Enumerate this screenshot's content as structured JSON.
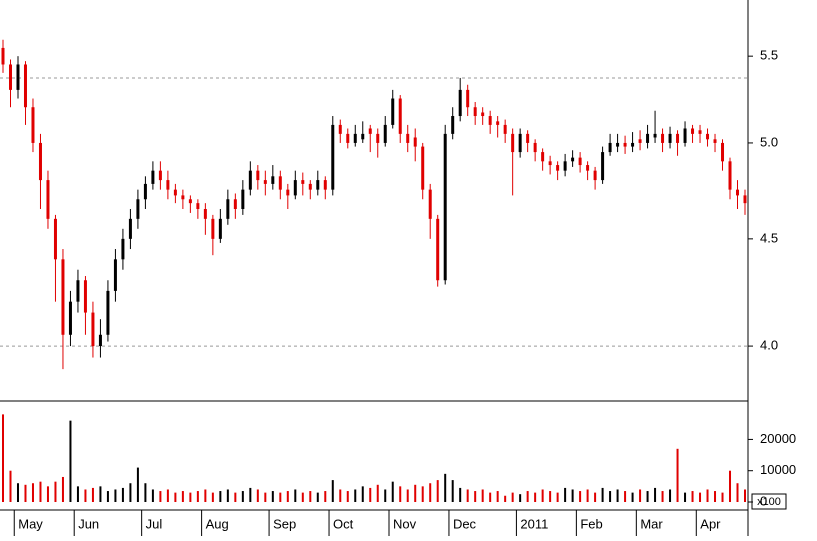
{
  "chart_data": [
    {
      "type": "candlestick",
      "categories": [
        null,
        null,
        "May",
        null,
        null,
        null,
        null,
        null,
        null,
        null,
        "Jun",
        null,
        null,
        null,
        null,
        null,
        null,
        null,
        null,
        "Jul",
        null,
        null,
        null,
        null,
        null,
        null,
        null,
        "Aug",
        null,
        null,
        null,
        null,
        null,
        null,
        null,
        null,
        "Sep",
        null,
        null,
        null,
        null,
        null,
        null,
        null,
        "Oct",
        null,
        null,
        null,
        null,
        null,
        null,
        null,
        "Nov",
        null,
        null,
        null,
        null,
        null,
        null,
        null,
        "Dec",
        null,
        null,
        null,
        null,
        null,
        null,
        null,
        null,
        "2011",
        null,
        null,
        null,
        null,
        null,
        null,
        null,
        "Feb",
        null,
        null,
        null,
        null,
        null,
        null,
        null,
        "Mar",
        null,
        null,
        null,
        null,
        null,
        null,
        null,
        "Apr",
        null,
        null,
        null,
        null,
        null,
        null
      ],
      "open": [
        5.55,
        5.45,
        5.3,
        5.45,
        5.2,
        5.0,
        4.8,
        4.6,
        4.4,
        4.05,
        4.2,
        4.3,
        4.15,
        4.0,
        4.05,
        4.25,
        4.4,
        4.5,
        4.6,
        4.7,
        4.78,
        4.85,
        4.8,
        4.75,
        4.72,
        4.7,
        4.68,
        4.65,
        4.6,
        4.5,
        4.6,
        4.7,
        4.65,
        4.75,
        4.85,
        4.8,
        4.78,
        4.82,
        4.75,
        4.72,
        4.8,
        4.78,
        4.75,
        4.8,
        4.75,
        5.1,
        5.05,
        5.0,
        5.02,
        5.08,
        5.05,
        5.0,
        5.1,
        5.25,
        5.05,
        5.03,
        4.98,
        4.75,
        4.6,
        4.3,
        5.05,
        5.15,
        5.3,
        5.2,
        5.17,
        5.15,
        5.12,
        5.1,
        5.05,
        4.95,
        5.05,
        5.0,
        4.95,
        4.9,
        4.88,
        4.85,
        4.9,
        4.92,
        4.88,
        4.85,
        4.8,
        4.95,
        4.98,
        5.0,
        4.98,
        5.02,
        5.0,
        5.03,
        5.05,
        5.0,
        5.05,
        5.0,
        5.08,
        5.07,
        5.05,
        5.02,
        5.0,
        4.9,
        4.75,
        4.72
      ],
      "high": [
        5.6,
        5.48,
        5.5,
        5.47,
        5.25,
        5.05,
        4.85,
        4.62,
        4.45,
        4.25,
        4.35,
        4.32,
        4.2,
        4.12,
        4.3,
        4.45,
        4.55,
        4.65,
        4.75,
        4.82,
        4.9,
        4.9,
        4.85,
        4.78,
        4.75,
        4.72,
        4.7,
        4.68,
        4.62,
        4.65,
        4.75,
        4.73,
        4.8,
        4.9,
        4.88,
        4.85,
        4.88,
        4.85,
        4.78,
        4.85,
        4.84,
        4.8,
        4.85,
        4.82,
        5.15,
        5.13,
        5.08,
        5.1,
        5.12,
        5.1,
        5.08,
        5.15,
        5.3,
        5.27,
        5.1,
        5.08,
        5.0,
        4.78,
        4.62,
        5.1,
        5.2,
        5.37,
        5.33,
        5.23,
        5.2,
        5.18,
        5.15,
        5.13,
        5.08,
        5.08,
        5.07,
        5.02,
        4.97,
        4.93,
        4.9,
        4.94,
        4.96,
        4.95,
        4.9,
        4.87,
        4.98,
        5.05,
        5.05,
        5.04,
        5.06,
        5.07,
        5.1,
        5.18,
        5.08,
        5.09,
        5.07,
        5.12,
        5.1,
        5.1,
        5.08,
        5.05,
        5.02,
        4.92,
        4.8,
        4.75
      ],
      "low": [
        5.4,
        5.2,
        5.25,
        5.1,
        4.95,
        4.65,
        4.55,
        4.2,
        3.9,
        4.0,
        4.15,
        4.05,
        3.95,
        3.95,
        4.02,
        4.2,
        4.35,
        4.45,
        4.55,
        4.65,
        4.75,
        4.75,
        4.7,
        4.68,
        4.65,
        4.63,
        4.6,
        4.52,
        4.42,
        4.48,
        4.57,
        4.6,
        4.62,
        4.72,
        4.75,
        4.72,
        4.75,
        4.7,
        4.65,
        4.7,
        4.72,
        4.7,
        4.72,
        4.7,
        4.72,
        5.0,
        4.97,
        4.98,
        5.0,
        4.95,
        4.92,
        4.98,
        5.08,
        5.0,
        4.95,
        4.9,
        4.7,
        4.5,
        4.27,
        4.28,
        5.02,
        5.12,
        5.15,
        5.1,
        5.1,
        5.05,
        5.03,
        5.0,
        4.72,
        4.92,
        4.95,
        4.9,
        4.85,
        4.83,
        4.8,
        4.82,
        4.87,
        4.84,
        4.8,
        4.75,
        4.78,
        4.93,
        4.95,
        4.94,
        4.95,
        4.96,
        4.97,
        5.0,
        4.95,
        4.97,
        4.93,
        4.98,
        5.0,
        5.0,
        4.98,
        4.95,
        4.85,
        4.7,
        4.65,
        4.62
      ],
      "close": [
        5.45,
        5.3,
        5.45,
        5.2,
        5.0,
        4.8,
        4.6,
        4.4,
        4.05,
        4.2,
        4.3,
        4.15,
        4.0,
        4.05,
        4.25,
        4.4,
        4.5,
        4.6,
        4.7,
        4.78,
        4.85,
        4.8,
        4.75,
        4.72,
        4.7,
        4.68,
        4.65,
        4.6,
        4.5,
        4.6,
        4.7,
        4.65,
        4.75,
        4.85,
        4.8,
        4.78,
        4.82,
        4.75,
        4.72,
        4.8,
        4.78,
        4.75,
        4.8,
        4.75,
        5.1,
        5.05,
        5.0,
        5.05,
        5.05,
        5.05,
        5.0,
        5.1,
        5.25,
        5.05,
        5.0,
        4.98,
        4.75,
        4.6,
        4.3,
        5.05,
        5.15,
        5.3,
        5.2,
        5.15,
        5.15,
        5.1,
        5.1,
        5.05,
        4.95,
        5.05,
        5.0,
        4.95,
        4.9,
        4.88,
        4.85,
        4.9,
        4.92,
        4.88,
        4.85,
        4.8,
        4.95,
        5.0,
        5.0,
        4.98,
        5.0,
        5.0,
        5.05,
        5.05,
        5.0,
        5.05,
        5.0,
        5.08,
        5.05,
        5.05,
        5.02,
        5.0,
        4.9,
        4.75,
        4.72,
        4.68
      ],
      "log": true,
      "ylim": [
        3.77,
        5.85
      ],
      "yticks": [
        {
          "value": 4.0,
          "label": "4.0"
        },
        4.5,
        {
          "value": 5.0,
          "label": "5.0"
        },
        5.5
      ],
      "up_color": "#000000",
      "down_color": "#e00000",
      "hlines": [
        4.0,
        5.37
      ]
    },
    {
      "type": "bar",
      "values": [
        28000,
        10000,
        6000,
        5500,
        6000,
        6500,
        5000,
        6500,
        8000,
        26000,
        5000,
        4000,
        4500,
        5000,
        3500,
        4000,
        4500,
        6000,
        11000,
        6000,
        4000,
        3500,
        4000,
        3000,
        3500,
        3000,
        3500,
        4000,
        3000,
        3500,
        4000,
        3000,
        3500,
        4500,
        4000,
        3000,
        3500,
        3000,
        3500,
        4000,
        3000,
        3500,
        3000,
        3500,
        7000,
        4000,
        3500,
        4000,
        5000,
        4500,
        5500,
        4000,
        6500,
        5000,
        4000,
        5500,
        5000,
        6000,
        7000,
        9000,
        7000,
        4500,
        4000,
        3500,
        4000,
        3000,
        3500,
        2000,
        3000,
        2500,
        3500,
        3000,
        4000,
        3500,
        3000,
        4500,
        4000,
        3500,
        4000,
        3000,
        4500,
        3500,
        4000,
        3500,
        3000,
        4000,
        3500,
        4500,
        3500,
        4000,
        17000,
        3000,
        3500,
        3000,
        4000,
        3500,
        3000,
        10000,
        6000,
        4000
      ],
      "up_color": "#000000",
      "down_color": "#e00000",
      "ylim": [
        0,
        31000
      ],
      "yticks": [
        0,
        10000,
        20000
      ],
      "unit_label": "x100"
    }
  ]
}
